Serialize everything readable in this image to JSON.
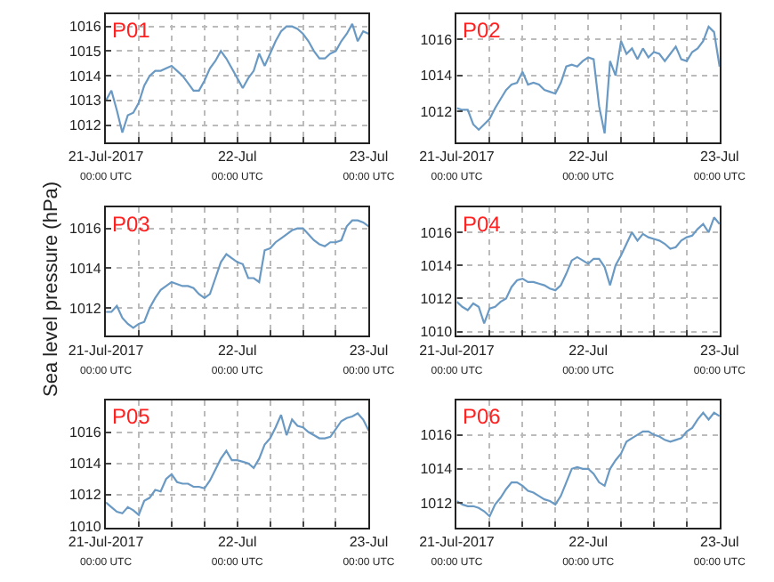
{
  "chart_data": [
    {
      "type": "line",
      "title": "P01",
      "x": [
        "2017-07-21T00:00",
        "2017-07-21T01:00",
        "2017-07-21T02:00",
        "2017-07-21T03:00",
        "2017-07-21T04:00",
        "2017-07-21T05:00",
        "2017-07-21T06:00",
        "2017-07-21T07:00",
        "2017-07-21T08:00",
        "2017-07-21T09:00",
        "2017-07-21T10:00",
        "2017-07-21T11:00",
        "2017-07-21T12:00",
        "2017-07-21T13:00",
        "2017-07-21T14:00",
        "2017-07-21T15:00",
        "2017-07-21T16:00",
        "2017-07-21T17:00",
        "2017-07-21T18:00",
        "2017-07-21T19:00",
        "2017-07-21T20:00",
        "2017-07-21T21:00",
        "2017-07-21T22:00",
        "2017-07-21T23:00",
        "2017-07-22T00:00",
        "2017-07-22T01:00",
        "2017-07-22T02:00",
        "2017-07-22T03:00",
        "2017-07-22T04:00",
        "2017-07-22T05:00",
        "2017-07-22T06:00",
        "2017-07-22T07:00",
        "2017-07-22T08:00",
        "2017-07-22T09:00",
        "2017-07-22T10:00",
        "2017-07-22T11:00",
        "2017-07-22T12:00",
        "2017-07-22T13:00",
        "2017-07-22T14:00",
        "2017-07-22T15:00",
        "2017-07-22T16:00",
        "2017-07-22T17:00",
        "2017-07-22T18:00",
        "2017-07-22T19:00",
        "2017-07-22T20:00",
        "2017-07-22T21:00",
        "2017-07-22T22:00",
        "2017-07-22T23:00",
        "2017-07-23T00:00"
      ],
      "xlim": [
        "2017-07-21T00:00",
        "2017-07-23T00:00"
      ],
      "ylim": [
        1011.3,
        1016.5
      ],
      "yticks": [
        1012,
        1013,
        1014,
        1015,
        1016
      ],
      "grid": true,
      "line_style": "solid",
      "marker": "none",
      "xticks": [
        {
          "value": "2017-07-21T00:00",
          "label": "21-Jul-2017\n00:00 UTC"
        },
        {
          "value": "2017-07-21T06:00",
          "label": null
        },
        {
          "value": "2017-07-21T12:00",
          "label": null
        },
        {
          "value": "2017-07-21T18:00",
          "label": null
        },
        {
          "value": "2017-07-22T00:00",
          "label": "22-Jul\n00:00 UTC"
        },
        {
          "value": "2017-07-22T06:00",
          "label": null
        },
        {
          "value": "2017-07-22T12:00",
          "label": null
        },
        {
          "value": "2017-07-22T18:00",
          "label": null
        },
        {
          "value": "2017-07-23T00:00",
          "label": "23-Jul\n00:00 UTC"
        }
      ],
      "series": [
        {
          "color": "#6a9ac4",
          "values": [
            1013.0,
            1013.4,
            1012.6,
            1011.7,
            1012.4,
            1012.5,
            1012.9,
            1013.6,
            1014.0,
            1014.2,
            1014.2,
            1014.3,
            1014.4,
            1014.2,
            1014.0,
            1013.7,
            1013.4,
            1013.4,
            1013.8,
            1014.3,
            1014.6,
            1015.0,
            1014.7,
            1014.3,
            1013.9,
            1013.5,
            1013.9,
            1014.2,
            1014.9,
            1014.4,
            1014.9,
            1015.4,
            1015.8,
            1016.0,
            1016.0,
            1015.9,
            1015.7,
            1015.4,
            1015.0,
            1014.7,
            1014.7,
            1014.9,
            1015.0,
            1015.4,
            1015.7,
            1016.1,
            1015.4,
            1015.8,
            1015.7
          ]
        }
      ]
    },
    {
      "type": "line",
      "title": "P02",
      "x": [
        "2017-07-21T00:00",
        "2017-07-21T01:00",
        "2017-07-21T02:00",
        "2017-07-21T03:00",
        "2017-07-21T04:00",
        "2017-07-21T05:00",
        "2017-07-21T06:00",
        "2017-07-21T07:00",
        "2017-07-21T08:00",
        "2017-07-21T09:00",
        "2017-07-21T10:00",
        "2017-07-21T11:00",
        "2017-07-21T12:00",
        "2017-07-21T13:00",
        "2017-07-21T14:00",
        "2017-07-21T15:00",
        "2017-07-21T16:00",
        "2017-07-21T17:00",
        "2017-07-21T18:00",
        "2017-07-21T19:00",
        "2017-07-21T20:00",
        "2017-07-21T21:00",
        "2017-07-21T22:00",
        "2017-07-21T23:00",
        "2017-07-22T00:00",
        "2017-07-22T01:00",
        "2017-07-22T02:00",
        "2017-07-22T03:00",
        "2017-07-22T04:00",
        "2017-07-22T05:00",
        "2017-07-22T06:00",
        "2017-07-22T07:00",
        "2017-07-22T08:00",
        "2017-07-22T09:00",
        "2017-07-22T10:00",
        "2017-07-22T11:00",
        "2017-07-22T12:00",
        "2017-07-22T13:00",
        "2017-07-22T14:00",
        "2017-07-22T15:00",
        "2017-07-22T16:00",
        "2017-07-22T17:00",
        "2017-07-22T18:00",
        "2017-07-22T19:00",
        "2017-07-22T20:00",
        "2017-07-22T21:00",
        "2017-07-22T22:00",
        "2017-07-22T23:00",
        "2017-07-23T00:00"
      ],
      "xlim": [
        "2017-07-21T00:00",
        "2017-07-23T00:00"
      ],
      "ylim": [
        1010.3,
        1017.4
      ],
      "yticks": [
        1012,
        1014,
        1016
      ],
      "grid": true,
      "line_style": "solid",
      "marker": "none",
      "xticks": [
        {
          "value": "2017-07-21T00:00",
          "label": "21-Jul-2017\n00:00 UTC"
        },
        {
          "value": "2017-07-21T06:00",
          "label": null
        },
        {
          "value": "2017-07-21T12:00",
          "label": null
        },
        {
          "value": "2017-07-21T18:00",
          "label": null
        },
        {
          "value": "2017-07-22T00:00",
          "label": "22-Jul\n00:00 UTC"
        },
        {
          "value": "2017-07-22T06:00",
          "label": null
        },
        {
          "value": "2017-07-22T12:00",
          "label": null
        },
        {
          "value": "2017-07-22T18:00",
          "label": null
        },
        {
          "value": "2017-07-23T00:00",
          "label": "23-Jul\n00:00 UTC"
        }
      ],
      "series": [
        {
          "color": "#6a9ac4",
          "values": [
            1012.2,
            1012.1,
            1012.1,
            1011.3,
            1011.0,
            1011.3,
            1011.6,
            1012.2,
            1012.7,
            1013.2,
            1013.5,
            1013.6,
            1014.2,
            1013.5,
            1013.6,
            1013.5,
            1013.2,
            1013.1,
            1013.0,
            1013.6,
            1014.5,
            1014.6,
            1014.5,
            1014.8,
            1015.0,
            1014.9,
            1012.3,
            1010.8,
            1014.8,
            1014.0,
            1015.9,
            1015.2,
            1015.5,
            1014.9,
            1015.5,
            1015.0,
            1015.3,
            1015.2,
            1014.8,
            1015.2,
            1015.6,
            1014.9,
            1014.8,
            1015.3,
            1015.5,
            1015.9,
            1016.7,
            1016.4,
            1014.5
          ]
        }
      ]
    },
    {
      "type": "line",
      "title": "P03",
      "x": [
        "2017-07-21T00:00",
        "2017-07-21T01:00",
        "2017-07-21T02:00",
        "2017-07-21T03:00",
        "2017-07-21T04:00",
        "2017-07-21T05:00",
        "2017-07-21T06:00",
        "2017-07-21T07:00",
        "2017-07-21T08:00",
        "2017-07-21T09:00",
        "2017-07-21T10:00",
        "2017-07-21T11:00",
        "2017-07-21T12:00",
        "2017-07-21T13:00",
        "2017-07-21T14:00",
        "2017-07-21T15:00",
        "2017-07-21T16:00",
        "2017-07-21T17:00",
        "2017-07-21T18:00",
        "2017-07-21T19:00",
        "2017-07-21T20:00",
        "2017-07-21T21:00",
        "2017-07-21T22:00",
        "2017-07-21T23:00",
        "2017-07-22T00:00",
        "2017-07-22T01:00",
        "2017-07-22T02:00",
        "2017-07-22T03:00",
        "2017-07-22T04:00",
        "2017-07-22T05:00",
        "2017-07-22T06:00",
        "2017-07-22T07:00",
        "2017-07-22T08:00",
        "2017-07-22T09:00",
        "2017-07-22T10:00",
        "2017-07-22T11:00",
        "2017-07-22T12:00",
        "2017-07-22T13:00",
        "2017-07-22T14:00",
        "2017-07-22T15:00",
        "2017-07-22T16:00",
        "2017-07-22T17:00",
        "2017-07-22T18:00",
        "2017-07-22T19:00",
        "2017-07-22T20:00",
        "2017-07-22T21:00",
        "2017-07-22T22:00",
        "2017-07-22T23:00",
        "2017-07-23T00:00"
      ],
      "ylabel": "Sea level pressure (hPa)",
      "xlim": [
        "2017-07-21T00:00",
        "2017-07-23T00:00"
      ],
      "ylim": [
        1010.6,
        1017.05
      ],
      "yticks": [
        1012,
        1014,
        1016
      ],
      "grid": true,
      "line_style": "solid",
      "marker": "none",
      "xticks": [
        {
          "value": "2017-07-21T00:00",
          "label": "21-Jul-2017\n00:00 UTC"
        },
        {
          "value": "2017-07-21T06:00",
          "label": null
        },
        {
          "value": "2017-07-21T12:00",
          "label": null
        },
        {
          "value": "2017-07-21T18:00",
          "label": null
        },
        {
          "value": "2017-07-22T00:00",
          "label": "22-Jul\n00:00 UTC"
        },
        {
          "value": "2017-07-22T06:00",
          "label": null
        },
        {
          "value": "2017-07-22T12:00",
          "label": null
        },
        {
          "value": "2017-07-22T18:00",
          "label": null
        },
        {
          "value": "2017-07-23T00:00",
          "label": "23-Jul\n00:00 UTC"
        }
      ],
      "series": [
        {
          "color": "#6a9ac4",
          "values": [
            1011.8,
            1011.8,
            1012.1,
            1011.5,
            1011.2,
            1011.0,
            1011.2,
            1011.3,
            1012.0,
            1012.5,
            1012.9,
            1013.1,
            1013.3,
            1013.2,
            1013.1,
            1013.1,
            1013.0,
            1012.7,
            1012.5,
            1012.7,
            1013.5,
            1014.3,
            1014.7,
            1014.5,
            1014.3,
            1014.2,
            1013.5,
            1013.5,
            1013.3,
            1014.9,
            1015.0,
            1015.3,
            1015.5,
            1015.7,
            1015.9,
            1016.0,
            1016.0,
            1015.7,
            1015.4,
            1015.2,
            1015.1,
            1015.3,
            1015.3,
            1015.4,
            1016.1,
            1016.4,
            1016.4,
            1016.3,
            1016.1
          ]
        }
      ]
    },
    {
      "type": "line",
      "title": "P04",
      "x": [
        "2017-07-21T00:00",
        "2017-07-21T01:00",
        "2017-07-21T02:00",
        "2017-07-21T03:00",
        "2017-07-21T04:00",
        "2017-07-21T05:00",
        "2017-07-21T06:00",
        "2017-07-21T07:00",
        "2017-07-21T08:00",
        "2017-07-21T09:00",
        "2017-07-21T10:00",
        "2017-07-21T11:00",
        "2017-07-21T12:00",
        "2017-07-21T13:00",
        "2017-07-21T14:00",
        "2017-07-21T15:00",
        "2017-07-21T16:00",
        "2017-07-21T17:00",
        "2017-07-21T18:00",
        "2017-07-21T19:00",
        "2017-07-21T20:00",
        "2017-07-21T21:00",
        "2017-07-21T22:00",
        "2017-07-21T23:00",
        "2017-07-22T00:00",
        "2017-07-22T01:00",
        "2017-07-22T02:00",
        "2017-07-22T03:00",
        "2017-07-22T04:00",
        "2017-07-22T05:00",
        "2017-07-22T06:00",
        "2017-07-22T07:00",
        "2017-07-22T08:00",
        "2017-07-22T09:00",
        "2017-07-22T10:00",
        "2017-07-22T11:00",
        "2017-07-22T12:00",
        "2017-07-22T13:00",
        "2017-07-22T14:00",
        "2017-07-22T15:00",
        "2017-07-22T16:00",
        "2017-07-22T17:00",
        "2017-07-22T18:00",
        "2017-07-22T19:00",
        "2017-07-22T20:00",
        "2017-07-22T21:00",
        "2017-07-22T22:00",
        "2017-07-22T23:00",
        "2017-07-23T00:00"
      ],
      "xlim": [
        "2017-07-21T00:00",
        "2017-07-23T00:00"
      ],
      "ylim": [
        1009.75,
        1017.5
      ],
      "yticks": [
        1010,
        1012,
        1014,
        1016
      ],
      "grid": true,
      "line_style": "solid",
      "marker": "none",
      "xticks": [
        {
          "value": "2017-07-21T00:00",
          "label": "21-Jul-2017\n00:00 UTC"
        },
        {
          "value": "2017-07-21T06:00",
          "label": null
        },
        {
          "value": "2017-07-21T12:00",
          "label": null
        },
        {
          "value": "2017-07-21T18:00",
          "label": null
        },
        {
          "value": "2017-07-22T00:00",
          "label": "22-Jul\n00:00 UTC"
        },
        {
          "value": "2017-07-22T06:00",
          "label": null
        },
        {
          "value": "2017-07-22T12:00",
          "label": null
        },
        {
          "value": "2017-07-22T18:00",
          "label": null
        },
        {
          "value": "2017-07-23T00:00",
          "label": "23-Jul\n00:00 UTC"
        }
      ],
      "series": [
        {
          "color": "#6a9ac4",
          "values": [
            1011.8,
            1011.5,
            1011.3,
            1011.7,
            1011.5,
            1010.5,
            1011.4,
            1011.5,
            1011.8,
            1012.0,
            1012.7,
            1013.1,
            1013.2,
            1013.0,
            1013.0,
            1012.9,
            1012.8,
            1012.6,
            1012.5,
            1012.8,
            1013.5,
            1014.3,
            1014.5,
            1014.3,
            1014.1,
            1014.4,
            1014.4,
            1013.9,
            1012.8,
            1014.0,
            1014.6,
            1015.3,
            1016.0,
            1015.5,
            1015.9,
            1015.7,
            1015.6,
            1015.5,
            1015.3,
            1015.0,
            1015.1,
            1015.5,
            1015.7,
            1015.8,
            1016.2,
            1016.5,
            1016.0,
            1016.9,
            1016.5
          ]
        }
      ]
    },
    {
      "type": "line",
      "title": "P05",
      "x": [
        "2017-07-21T00:00",
        "2017-07-21T01:00",
        "2017-07-21T02:00",
        "2017-07-21T03:00",
        "2017-07-21T04:00",
        "2017-07-21T05:00",
        "2017-07-21T06:00",
        "2017-07-21T07:00",
        "2017-07-21T08:00",
        "2017-07-21T09:00",
        "2017-07-21T10:00",
        "2017-07-21T11:00",
        "2017-07-21T12:00",
        "2017-07-21T13:00",
        "2017-07-21T14:00",
        "2017-07-21T15:00",
        "2017-07-21T16:00",
        "2017-07-21T17:00",
        "2017-07-21T18:00",
        "2017-07-21T19:00",
        "2017-07-21T20:00",
        "2017-07-21T21:00",
        "2017-07-21T22:00",
        "2017-07-21T23:00",
        "2017-07-22T00:00",
        "2017-07-22T01:00",
        "2017-07-22T02:00",
        "2017-07-22T03:00",
        "2017-07-22T04:00",
        "2017-07-22T05:00",
        "2017-07-22T06:00",
        "2017-07-22T07:00",
        "2017-07-22T08:00",
        "2017-07-22T09:00",
        "2017-07-22T10:00",
        "2017-07-22T11:00",
        "2017-07-22T12:00",
        "2017-07-22T13:00",
        "2017-07-22T14:00",
        "2017-07-22T15:00",
        "2017-07-22T16:00",
        "2017-07-22T17:00",
        "2017-07-22T18:00",
        "2017-07-22T19:00",
        "2017-07-22T20:00",
        "2017-07-22T21:00",
        "2017-07-22T22:00",
        "2017-07-22T23:00",
        "2017-07-23T00:00"
      ],
      "xlim": [
        "2017-07-21T00:00",
        "2017-07-23T00:00"
      ],
      "ylim": [
        1009.9,
        1018.0
      ],
      "yticks": [
        1010,
        1012,
        1014,
        1016
      ],
      "grid": true,
      "line_style": "solid",
      "marker": "none",
      "xticks": [
        {
          "value": "2017-07-21T00:00",
          "label": "21-Jul-2017\n00:00 UTC"
        },
        {
          "value": "2017-07-21T06:00",
          "label": null
        },
        {
          "value": "2017-07-21T12:00",
          "label": null
        },
        {
          "value": "2017-07-21T18:00",
          "label": null
        },
        {
          "value": "2017-07-22T00:00",
          "label": "22-Jul\n00:00 UTC"
        },
        {
          "value": "2017-07-22T06:00",
          "label": null
        },
        {
          "value": "2017-07-22T12:00",
          "label": null
        },
        {
          "value": "2017-07-22T18:00",
          "label": null
        },
        {
          "value": "2017-07-23T00:00",
          "label": "23-Jul\n00:00 UTC"
        }
      ],
      "series": [
        {
          "color": "#6a9ac4",
          "values": [
            1011.5,
            1011.2,
            1010.9,
            1010.8,
            1011.2,
            1011.0,
            1010.7,
            1011.6,
            1011.8,
            1012.3,
            1012.2,
            1013.0,
            1013.3,
            1012.8,
            1012.7,
            1012.7,
            1012.5,
            1012.5,
            1012.4,
            1012.9,
            1013.6,
            1014.3,
            1014.8,
            1014.2,
            1014.2,
            1014.1,
            1014.0,
            1013.7,
            1014.3,
            1015.2,
            1015.6,
            1016.3,
            1017.1,
            1015.8,
            1016.8,
            1016.4,
            1016.3,
            1016.0,
            1015.8,
            1015.6,
            1015.6,
            1015.7,
            1016.2,
            1016.7,
            1016.9,
            1017.0,
            1017.2,
            1016.8,
            1016.1
          ]
        }
      ]
    },
    {
      "type": "line",
      "title": "P06",
      "x": [
        "2017-07-21T00:00",
        "2017-07-21T01:00",
        "2017-07-21T02:00",
        "2017-07-21T03:00",
        "2017-07-21T04:00",
        "2017-07-21T05:00",
        "2017-07-21T06:00",
        "2017-07-21T07:00",
        "2017-07-21T08:00",
        "2017-07-21T09:00",
        "2017-07-21T10:00",
        "2017-07-21T11:00",
        "2017-07-21T12:00",
        "2017-07-21T13:00",
        "2017-07-21T14:00",
        "2017-07-21T15:00",
        "2017-07-21T16:00",
        "2017-07-21T17:00",
        "2017-07-21T18:00",
        "2017-07-21T19:00",
        "2017-07-21T20:00",
        "2017-07-21T21:00",
        "2017-07-21T22:00",
        "2017-07-21T23:00",
        "2017-07-22T00:00",
        "2017-07-22T01:00",
        "2017-07-22T02:00",
        "2017-07-22T03:00",
        "2017-07-22T04:00",
        "2017-07-22T05:00",
        "2017-07-22T06:00",
        "2017-07-22T07:00",
        "2017-07-22T08:00",
        "2017-07-22T09:00",
        "2017-07-22T10:00",
        "2017-07-22T11:00",
        "2017-07-22T12:00",
        "2017-07-22T13:00",
        "2017-07-22T14:00",
        "2017-07-22T15:00",
        "2017-07-22T16:00",
        "2017-07-22T17:00",
        "2017-07-22T18:00",
        "2017-07-22T19:00",
        "2017-07-22T20:00",
        "2017-07-22T21:00",
        "2017-07-22T22:00",
        "2017-07-22T23:00",
        "2017-07-23T00:00"
      ],
      "xlim": [
        "2017-07-21T00:00",
        "2017-07-23T00:00"
      ],
      "ylim": [
        1010.55,
        1018.0
      ],
      "yticks": [
        1012,
        1014,
        1016
      ],
      "grid": true,
      "line_style": "solid",
      "marker": "none",
      "xticks": [
        {
          "value": "2017-07-21T00:00",
          "label": "21-Jul-2017\n00:00 UTC"
        },
        {
          "value": "2017-07-21T06:00",
          "label": null
        },
        {
          "value": "2017-07-21T12:00",
          "label": null
        },
        {
          "value": "2017-07-21T18:00",
          "label": null
        },
        {
          "value": "2017-07-22T00:00",
          "label": "22-Jul\n00:00 UTC"
        },
        {
          "value": "2017-07-22T06:00",
          "label": null
        },
        {
          "value": "2017-07-22T12:00",
          "label": null
        },
        {
          "value": "2017-07-22T18:00",
          "label": null
        },
        {
          "value": "2017-07-23T00:00",
          "label": "23-Jul\n00:00 UTC"
        }
      ],
      "series": [
        {
          "color": "#6a9ac4",
          "values": [
            1012.1,
            1011.9,
            1011.8,
            1011.8,
            1011.7,
            1011.5,
            1011.2,
            1011.9,
            1012.3,
            1012.8,
            1013.2,
            1013.2,
            1013.0,
            1012.7,
            1012.6,
            1012.4,
            1012.2,
            1012.1,
            1011.9,
            1012.4,
            1013.2,
            1014.0,
            1014.1,
            1014.0,
            1014.0,
            1013.7,
            1013.2,
            1013.0,
            1014.0,
            1014.5,
            1014.9,
            1015.6,
            1015.8,
            1016.0,
            1016.2,
            1016.2,
            1016.0,
            1015.9,
            1015.7,
            1015.6,
            1015.7,
            1015.8,
            1016.2,
            1016.4,
            1016.9,
            1017.3,
            1016.9,
            1017.3,
            1017.1
          ]
        }
      ]
    }
  ]
}
